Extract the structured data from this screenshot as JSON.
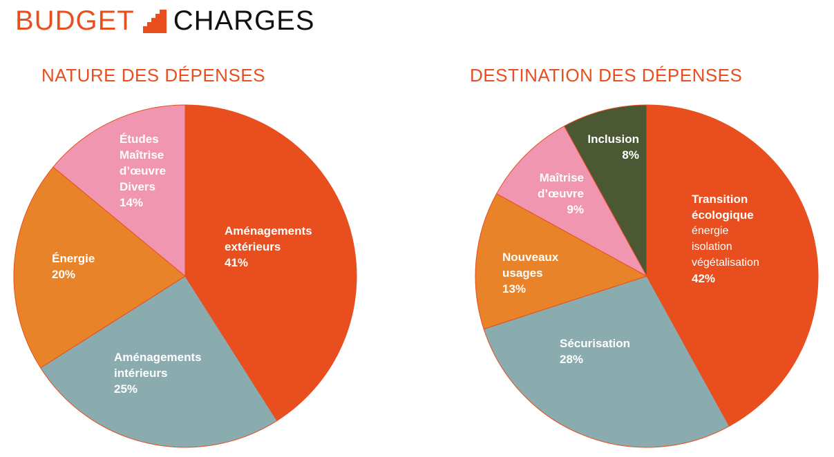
{
  "header": {
    "brand_left": "BUDGET",
    "brand_right": "CHARGES"
  },
  "colors": {
    "accent": "#E84E1E",
    "teal": "#8AACAF",
    "orange": "#E8832A",
    "pink": "#F096B0",
    "olive": "#4B5834"
  },
  "chart_data": [
    {
      "type": "pie",
      "title": "NATURE DES DÉPENSES",
      "start": "top",
      "direction": "clockwise",
      "slices": [
        {
          "name": "Aménagements extérieurs",
          "value": 41,
          "color": "#E84E1E",
          "label": [
            {
              "t": "Aménagements",
              "s": "b"
            },
            {
              "t": "extérieurs",
              "s": "b"
            },
            {
              "t": "41%",
              "s": "b"
            }
          ]
        },
        {
          "name": "Aménagements intérieurs",
          "value": 25,
          "color": "#8AACAF",
          "label": [
            {
              "t": "Aménagements",
              "s": "b"
            },
            {
              "t": "intérieurs",
              "s": "b"
            },
            {
              "t": "25%",
              "s": "b"
            }
          ]
        },
        {
          "name": "Énergie",
          "value": 20,
          "color": "#E8832A",
          "label": [
            {
              "t": "Énergie",
              "s": "b"
            },
            {
              "t": "20%",
              "s": "b"
            }
          ]
        },
        {
          "name": "Études Maîtrise d'œuvre Divers",
          "value": 14,
          "color": "#F096B0",
          "label": [
            {
              "t": "Études",
              "s": "b"
            },
            {
              "t": "Maîtrise",
              "s": "b"
            },
            {
              "t": "d’œuvre",
              "s": "b"
            },
            {
              "t": "Divers",
              "s": "b"
            },
            {
              "t": "14%",
              "s": "b"
            }
          ]
        }
      ]
    },
    {
      "type": "pie",
      "title": "DESTINATION DES DÉPENSES",
      "start": "top",
      "direction": "clockwise",
      "slices": [
        {
          "name": "Transition écologique",
          "value": 42,
          "color": "#E84E1E",
          "label": [
            {
              "t": "Transition",
              "s": "b"
            },
            {
              "t": "écologique",
              "s": "b"
            },
            {
              "t": "énergie",
              "s": "r"
            },
            {
              "t": "isolation",
              "s": "r"
            },
            {
              "t": "végétalisation",
              "s": "r"
            },
            {
              "t": "42%",
              "s": "b"
            }
          ]
        },
        {
          "name": "Sécurisation",
          "value": 28,
          "color": "#8AACAF",
          "label": [
            {
              "t": "Sécurisation",
              "s": "b"
            },
            {
              "t": "28%",
              "s": "b"
            }
          ]
        },
        {
          "name": "Nouveaux usages",
          "value": 13,
          "color": "#E8832A",
          "label": [
            {
              "t": "Nouveaux",
              "s": "b"
            },
            {
              "t": "usages",
              "s": "b"
            },
            {
              "t": "13%",
              "s": "b"
            }
          ]
        },
        {
          "name": "Maîtrise d'œuvre",
          "value": 9,
          "color": "#F096B0",
          "label": [
            {
              "t": "Maîtrise",
              "s": "b"
            },
            {
              "t": "d’œuvre",
              "s": "b"
            },
            {
              "t": "9%",
              "s": "b"
            }
          ]
        },
        {
          "name": "Inclusion",
          "value": 8,
          "color": "#4B5834",
          "label": [
            {
              "t": "Inclusion",
              "s": "b"
            },
            {
              "t": "8%",
              "s": "b"
            }
          ]
        }
      ]
    }
  ]
}
